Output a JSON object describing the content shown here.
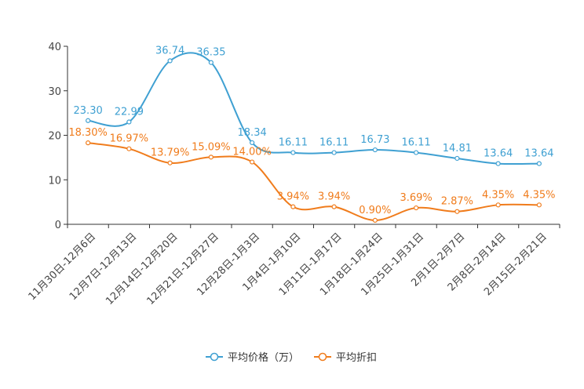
{
  "chart_data": {
    "type": "line",
    "title": "",
    "xlabel": "",
    "ylabel": "",
    "ylim": [
      0,
      40
    ],
    "yticks": [
      "0",
      "10",
      "20",
      "30",
      "40"
    ],
    "grid": false,
    "legend_position": "bottom",
    "categories": [
      "11月30日-12月6日",
      "12月7日-12月13日",
      "12月14日-12月20日",
      "12月21日-12月27日",
      "12月28日-1月3日",
      "1月4日-1月10日",
      "1月11日-1月17日",
      "1月18日-1月24日",
      "1月25日-1月31日",
      "2月1日-2月7日",
      "2月8日-2月14日",
      "2月15日-2月21日"
    ],
    "series": [
      {
        "name": "平均价格（万）",
        "color": "#3fa0d2",
        "values": [
          23.3,
          22.99,
          36.74,
          36.35,
          18.34,
          16.11,
          16.11,
          16.73,
          16.11,
          14.81,
          13.64,
          13.64
        ],
        "labels": [
          "23.30",
          "22.99",
          "36.74",
          "36.35",
          "18.34",
          "16.11",
          "16.11",
          "16.73",
          "16.11",
          "14.81",
          "13.64",
          "13.64"
        ]
      },
      {
        "name": "平均折扣",
        "color": "#f07c1c",
        "values": [
          18.3,
          16.97,
          13.79,
          15.09,
          14.0,
          3.94,
          3.94,
          0.9,
          3.69,
          2.87,
          4.35,
          4.35
        ],
        "labels": [
          "18.30%",
          "16.97%",
          "13.79%",
          "15.09%",
          "14.00%",
          "3.94%",
          "3.94%",
          "0.90%",
          "3.69%",
          "2.87%",
          "4.35%",
          "4.35%"
        ]
      }
    ]
  }
}
